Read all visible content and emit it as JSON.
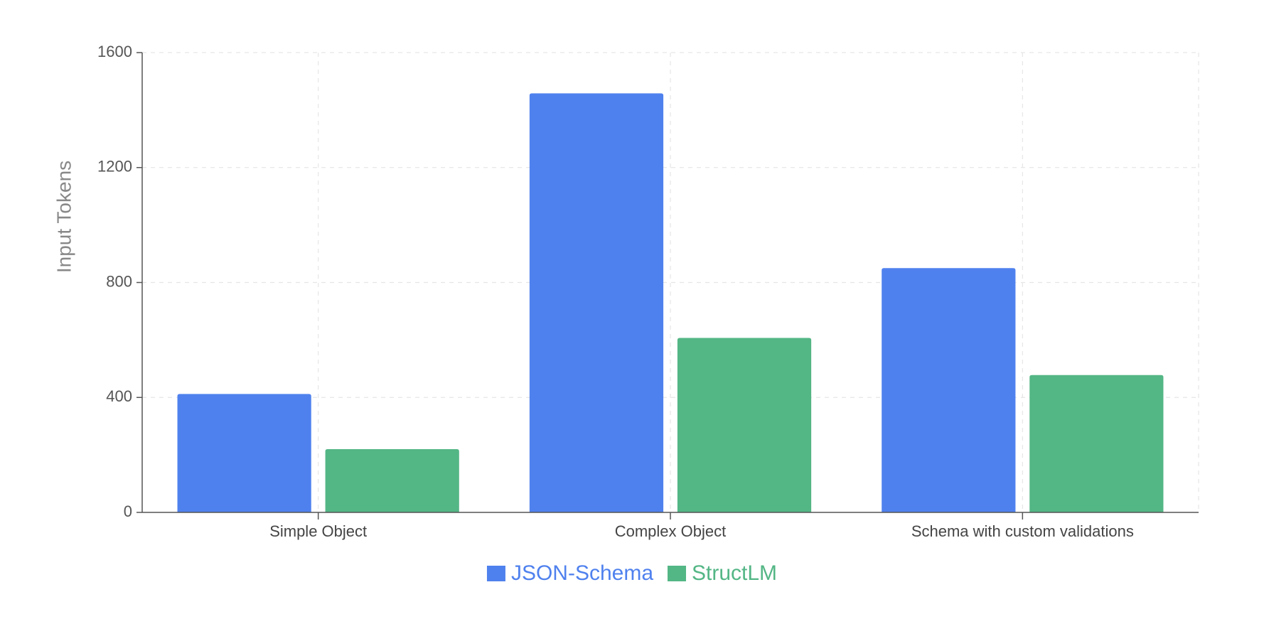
{
  "chart_data": {
    "type": "bar",
    "title": "",
    "xlabel": "",
    "ylabel": "Input Tokens",
    "categories": [
      "Simple Object",
      "Complex Object",
      "Schema with custom validations"
    ],
    "series": [
      {
        "name": "JSON-Schema",
        "values": [
          412,
          1458,
          850
        ],
        "color": "#4f81ee"
      },
      {
        "name": "StructLM",
        "values": [
          220,
          607,
          478
        ],
        "color": "#53b685"
      }
    ],
    "ylim": [
      0,
      1600
    ],
    "yticks": [
      0,
      400,
      800,
      1200,
      1600
    ],
    "grid": true,
    "legend_position": "bottom-center"
  }
}
